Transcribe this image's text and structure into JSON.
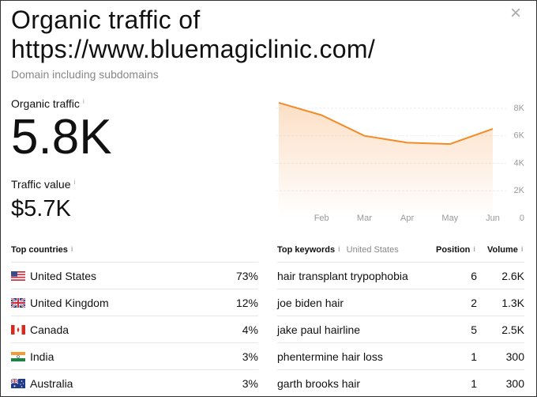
{
  "header": {
    "title": "Organic traffic of https://www.bluemagiclinic.com/",
    "subtitle": "Domain including subdomains"
  },
  "metrics": {
    "organic_label": "Organic traffic",
    "organic_value": "5.8K",
    "value_label": "Traffic value",
    "value_value": "$5.7K"
  },
  "chart_data": {
    "type": "line",
    "categories": [
      null,
      "Feb",
      "Mar",
      "Apr",
      "May",
      "Jun"
    ],
    "values": [
      8400,
      7500,
      6000,
      5500,
      5400,
      6500
    ],
    "color": "#f28c28",
    "ylim": [
      0,
      8800
    ],
    "yticks": [
      0,
      {
        "value": 2000,
        "label": "2K"
      },
      {
        "value": 4000,
        "label": "4K"
      },
      {
        "value": 6000,
        "label": "6K"
      },
      {
        "value": 8000,
        "label": "8K"
      }
    ],
    "grid": true
  },
  "countries": {
    "title": "Top countries",
    "rows": [
      [
        "United States",
        "73%"
      ],
      [
        "United Kingdom",
        "12%"
      ],
      [
        "Canada",
        "4%"
      ],
      [
        "India",
        "3%"
      ],
      [
        "Australia",
        "3%"
      ]
    ]
  },
  "keywords": {
    "title": "Top keywords",
    "location": "United States",
    "headers": [
      "Position",
      "Volume"
    ],
    "rows": [
      [
        "hair transplant trypophobia",
        6,
        "2.6K"
      ],
      [
        "joe biden hair",
        2,
        "1.3K"
      ],
      [
        "jake paul hairline",
        5,
        "2.5K"
      ],
      [
        "phentermine hair loss",
        1,
        "300"
      ],
      [
        "garth brooks hair",
        1,
        "300"
      ]
    ]
  }
}
